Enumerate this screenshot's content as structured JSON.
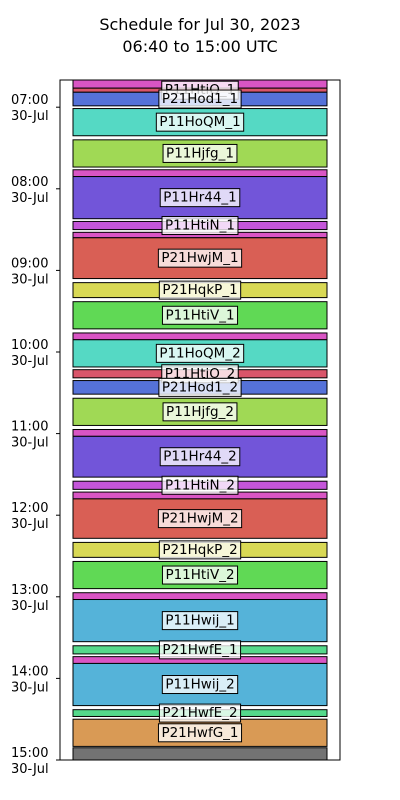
{
  "chart_data": {
    "type": "bar",
    "orientation": "timeline",
    "title": "Schedule for Jul 30, 2023",
    "subtitle": "06:40 to 15:00 UTC",
    "y_range": [
      "06:40",
      "15:00"
    ],
    "y_inverted": true,
    "y_ticks": [
      {
        "time": "07:00",
        "date": "30-Jul"
      },
      {
        "time": "08:00",
        "date": "30-Jul"
      },
      {
        "time": "09:00",
        "date": "30-Jul"
      },
      {
        "time": "10:00",
        "date": "30-Jul"
      },
      {
        "time": "11:00",
        "date": "30-Jul"
      },
      {
        "time": "12:00",
        "date": "30-Jul"
      },
      {
        "time": "13:00",
        "date": "30-Jul"
      },
      {
        "time": "14:00",
        "date": "30-Jul"
      },
      {
        "time": "15:00",
        "date": "30-Jul"
      }
    ],
    "grid": false,
    "legend": "none",
    "blocks": [
      {
        "start": "06:40",
        "end": "06:46",
        "label": "",
        "color": "#d955c4"
      },
      {
        "start": "06:46",
        "end": "06:49",
        "label": "P11HtiO_1",
        "color": "#d9556a"
      },
      {
        "start": "06:49",
        "end": "06:59",
        "label": "P21Hod1_1",
        "color": "#5572d9"
      },
      {
        "start": "07:01",
        "end": "07:21",
        "label": "P11HoQM_1",
        "color": "#55d9c4"
      },
      {
        "start": "07:24",
        "end": "07:44",
        "label": "P11Hjfg_1",
        "color": "#a0d955"
      },
      {
        "start": "07:46",
        "end": "07:51",
        "label": "",
        "color": "#d955c4"
      },
      {
        "start": "07:51",
        "end": "08:22",
        "label": "P11Hr44_1",
        "color": "#7255d9"
      },
      {
        "start": "08:24",
        "end": "08:30",
        "label": "P11HtiN_1",
        "color": "#c455d9"
      },
      {
        "start": "08:32",
        "end": "08:36",
        "label": "",
        "color": "#d955c4"
      },
      {
        "start": "08:36",
        "end": "09:06",
        "label": "P21HwjM_1",
        "color": "#d95f55"
      },
      {
        "start": "09:09",
        "end": "09:20",
        "label": "P21HqkP_1",
        "color": "#d9d955"
      },
      {
        "start": "09:23",
        "end": "09:43",
        "label": "P11HtiV_1",
        "color": "#60d955"
      },
      {
        "start": "09:46",
        "end": "09:51",
        "label": "",
        "color": "#d955c4"
      },
      {
        "start": "09:51",
        "end": "10:11",
        "label": "P11HoQM_2",
        "color": "#55d9c4"
      },
      {
        "start": "10:13",
        "end": "10:19",
        "label": "P11HtiO_2",
        "color": "#d9556a"
      },
      {
        "start": "10:21",
        "end": "10:31",
        "label": "P21Hod1_2",
        "color": "#5572d9"
      },
      {
        "start": "10:34",
        "end": "10:54",
        "label": "P11Hjfg_2",
        "color": "#a0d955"
      },
      {
        "start": "10:57",
        "end": "11:02",
        "label": "",
        "color": "#d955c4"
      },
      {
        "start": "11:02",
        "end": "11:32",
        "label": "P11Hr44_2",
        "color": "#7255d9"
      },
      {
        "start": "11:35",
        "end": "11:41",
        "label": "P11HtiN_2",
        "color": "#c455d9"
      },
      {
        "start": "11:43",
        "end": "11:48",
        "label": "",
        "color": "#d955c4"
      },
      {
        "start": "11:48",
        "end": "12:17",
        "label": "P21HwjM_2",
        "color": "#d95f55"
      },
      {
        "start": "12:20",
        "end": "12:31",
        "label": "P21HqkP_2",
        "color": "#d9d955"
      },
      {
        "start": "12:34",
        "end": "12:54",
        "label": "P11HtiV_2",
        "color": "#60d955"
      },
      {
        "start": "12:57",
        "end": "13:02",
        "label": "",
        "color": "#d955c4"
      },
      {
        "start": "13:02",
        "end": "13:33",
        "label": "P11Hwij_1",
        "color": "#55b3d9"
      },
      {
        "start": "13:36",
        "end": "13:42",
        "label": "P21HwfE_1",
        "color": "#55d98b"
      },
      {
        "start": "13:44",
        "end": "13:49",
        "label": "",
        "color": "#d955c4"
      },
      {
        "start": "13:49",
        "end": "14:20",
        "label": "P11Hwij_2",
        "color": "#55b3d9"
      },
      {
        "start": "14:23",
        "end": "14:28",
        "label": "P21HwfE_2",
        "color": "#55d98b"
      },
      {
        "start": "14:30",
        "end": "14:50",
        "label": "P21HwfG_1",
        "color": "#d99a55"
      },
      {
        "start": "14:51",
        "end": "15:00",
        "label": "",
        "color": "#737373"
      }
    ]
  }
}
